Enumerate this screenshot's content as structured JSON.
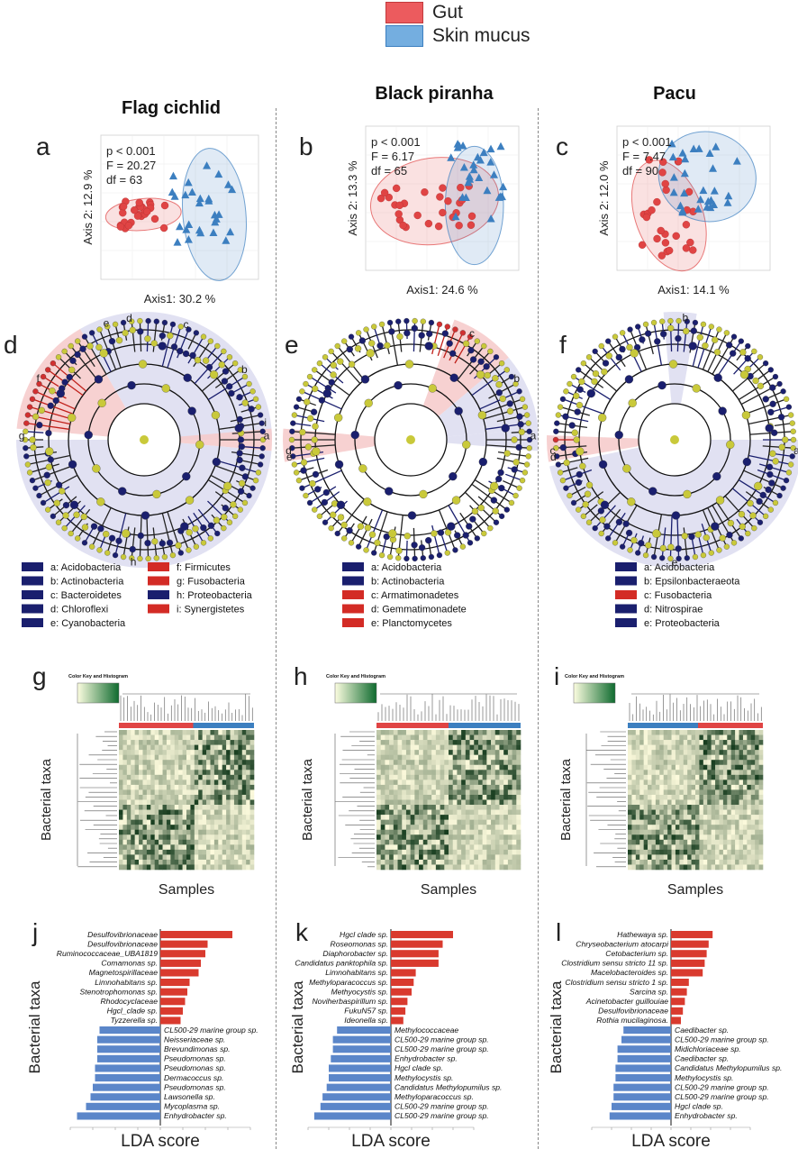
{
  "legend": {
    "items": [
      {
        "label": "Gut",
        "color": "#e8464a"
      },
      {
        "label": "Skin mucus",
        "color": "#6aa8dc"
      }
    ]
  },
  "colors": {
    "gut": "#e04444",
    "skin": "#3c7fc0",
    "blue_dark": "#1a1f6e",
    "red_bar": "#d93a2e",
    "blue_bar": "#5b86c9",
    "node_yellow": "#c9c93a"
  },
  "columns": [
    {
      "title": "Flag cichlid",
      "pcoa": {
        "letter": "a",
        "p": "p < 0.001",
        "F": "F =  20.27",
        "df": "df = 63",
        "xlabel": "Axis1:  30.2 %",
        "ylabel": "Axis 2:  12.9 %"
      },
      "clado": {
        "letter": "d",
        "labels": [
          "a",
          "b",
          "c",
          "d",
          "e",
          "f",
          "g",
          "h",
          "i"
        ],
        "legend": [
          {
            "label": "a: Acidobacteria",
            "color": "blue"
          },
          {
            "label": "b: Actinobacteria",
            "color": "blue"
          },
          {
            "label": "c: Bacteroidetes",
            "color": "blue"
          },
          {
            "label": "d: Chloroflexi",
            "color": "blue"
          },
          {
            "label": "e: Cyanobacteria",
            "color": "blue"
          },
          {
            "label": "f: Firmicutes",
            "color": "red"
          },
          {
            "label": "g: Fusobacteria",
            "color": "red"
          },
          {
            "label": "h: Proteobacteria",
            "color": "blue"
          },
          {
            "label": "i: Synergistetes",
            "color": "red"
          }
        ]
      },
      "heatmap": {
        "letter": "g",
        "ylabel": "Bacterial taxa",
        "xlabel": "Samples",
        "key": "Color Key and Histogram"
      },
      "lda": {
        "letter": "j",
        "ylabel": "Bacterial taxa",
        "xlabel": "LDA score",
        "items": [
          {
            "name": "Desulfovibrionaceae",
            "value": 3.2
          },
          {
            "name": "Desulfovibrionaceae",
            "value": 2.1
          },
          {
            "name": "Ruminococcaceae_UBA1819",
            "value": 2.0
          },
          {
            "name": "Comamonas sp.",
            "value": 1.8
          },
          {
            "name": "Magnetospirillaceae",
            "value": 1.7
          },
          {
            "name": "Limnohabitans sp.",
            "value": 1.3
          },
          {
            "name": "Stenotrophomonas sp.",
            "value": 1.2
          },
          {
            "name": "Rhodocyclaceae",
            "value": 1.1
          },
          {
            "name": "Hgcl_clade sp.",
            "value": 1.0
          },
          {
            "name": "Tyzzerella sp.",
            "value": 0.9
          },
          {
            "name": "CL500-29 marine group sp.",
            "value": -2.7
          },
          {
            "name": "Neisseriaceae sp.",
            "value": -2.8
          },
          {
            "name": "Brevundimonas sp.",
            "value": -2.8
          },
          {
            "name": "Pseudomonas sp.",
            "value": -2.8
          },
          {
            "name": "Pseudomonas sp.",
            "value": -2.9
          },
          {
            "name": "Dermacoccus sp.",
            "value": -2.9
          },
          {
            "name": "Pseudomonas sp.",
            "value": -3.0
          },
          {
            "name": "Lawsonella sp.",
            "value": -3.1
          },
          {
            "name": "Mycoplasma sp.",
            "value": -3.3
          },
          {
            "name": "Enhydrobacter sp.",
            "value": -3.7
          }
        ]
      }
    },
    {
      "title": "Black piranha",
      "pcoa": {
        "letter": "b",
        "p": "p < 0.001",
        "F": "F =  6.17",
        "df": "df = 65",
        "xlabel": "Axis1:  24.6 %",
        "ylabel": "Axis 2:  13.3 %"
      },
      "clado": {
        "letter": "e",
        "labels": [
          "a",
          "b",
          "c",
          "d",
          "e"
        ],
        "legend": [
          {
            "label": "a: Acidobacteria",
            "color": "blue"
          },
          {
            "label": "b: Actinobacteria",
            "color": "blue"
          },
          {
            "label": "c: Armatimonadetes",
            "color": "red"
          },
          {
            "label": "d: Gemmatimonadete",
            "color": "red"
          },
          {
            "label": "e: Planctomycetes",
            "color": "red"
          }
        ]
      },
      "heatmap": {
        "letter": "h",
        "ylabel": "Bacterial taxa",
        "xlabel": "Samples",
        "key": "Color Key and Histogram"
      },
      "lda": {
        "letter": "k",
        "ylabel": "Bacterial taxa",
        "xlabel": "LDA score",
        "items": [
          {
            "name": "Hgcl clade sp.",
            "value": 3.0
          },
          {
            "name": "Roseomonas sp.",
            "value": 2.5
          },
          {
            "name": "Diaphorobacter sp.",
            "value": 2.3
          },
          {
            "name": "Candidatus panktophila sp.",
            "value": 2.3
          },
          {
            "name": "Limnohabitans sp.",
            "value": 1.2
          },
          {
            "name": "Methyloparacoccus sp.",
            "value": 1.1
          },
          {
            "name": "Methyocystis sp.",
            "value": 1.0
          },
          {
            "name": "Noviherbaspirillum sp.",
            "value": 0.8
          },
          {
            "name": "FukuN57 sp.",
            "value": 0.7
          },
          {
            "name": "Ideonella sp.",
            "value": 0.6
          },
          {
            "name": "Methylococcaceae",
            "value": -2.6
          },
          {
            "name": "CL500-29 marine group sp.",
            "value": -2.8
          },
          {
            "name": "CL500-29 marine group sp.",
            "value": -2.8
          },
          {
            "name": "Enhydrobacter sp.",
            "value": -2.9
          },
          {
            "name": "Hgcl clade sp.",
            "value": -3.0
          },
          {
            "name": "Methylocystis sp.",
            "value": -3.0
          },
          {
            "name": "Candidatus Methylopumilus sp.",
            "value": -3.1
          },
          {
            "name": "Methyloparacoccus sp.",
            "value": -3.3
          },
          {
            "name": "CL500-29 marine group sp.",
            "value": -3.4
          },
          {
            "name": "CL500-29 marine group sp.",
            "value": -3.7
          }
        ]
      }
    },
    {
      "title": "Pacu",
      "pcoa": {
        "letter": "c",
        "p": "p < 0.001",
        "F": "F =  7.47",
        "df": "df = 90",
        "xlabel": "Axis1:  14.1 %",
        "ylabel": "Axis 2:  12.0 %"
      },
      "clado": {
        "letter": "f",
        "labels": [
          "a",
          "b",
          "c",
          "d",
          "e"
        ],
        "legend": [
          {
            "label": "a: Acidobacteria",
            "color": "blue"
          },
          {
            "label": "b: Epsilonbacteraeota",
            "color": "blue"
          },
          {
            "label": "c: Fusobacteria",
            "color": "red"
          },
          {
            "label": "d: Nitrospirae",
            "color": "blue"
          },
          {
            "label": "e: Proteobacteria",
            "color": "blue"
          }
        ]
      },
      "heatmap": {
        "letter": "i",
        "ylabel": "Bacterial taxa",
        "xlabel": "Samples",
        "key": "Color Key and Histogram"
      },
      "lda": {
        "letter": "l",
        "ylabel": "Bacterial taxa",
        "xlabel": "LDA score",
        "items": [
          {
            "name": "Hathewaya sp.",
            "value": 2.1
          },
          {
            "name": "Chryseobacterium atocarpi",
            "value": 1.9
          },
          {
            "name": "Cetobacterium sp.",
            "value": 1.8
          },
          {
            "name": "Clostridium sensu stricto 11 sp.",
            "value": 1.7
          },
          {
            "name": "Macelobacteroides sp.",
            "value": 1.6
          },
          {
            "name": "Clostridium sensu stricto 1 sp.",
            "value": 0.9
          },
          {
            "name": "Sarcina sp.",
            "value": 0.8
          },
          {
            "name": "Acinetobacter guillouiae",
            "value": 0.7
          },
          {
            "name": "Desulfovibrionaceae",
            "value": 0.6
          },
          {
            "name": "Rothia mucilaginosa.",
            "value": 0.5
          },
          {
            "name": "Caedibacter sp.",
            "value": -2.4
          },
          {
            "name": "CL500-29 marine group sp.",
            "value": -2.5
          },
          {
            "name": "Midichloriaceae sp.",
            "value": -2.7
          },
          {
            "name": "Caedibacter sp.",
            "value": -2.7
          },
          {
            "name": "Candidatus Methylopumilus sp.",
            "value": -2.8
          },
          {
            "name": "Methylocystis sp.",
            "value": -2.8
          },
          {
            "name": "CL500-29 marine group sp.",
            "value": -2.9
          },
          {
            "name": "CL500-29 marine group sp.",
            "value": -2.9
          },
          {
            "name": "Hgcl clade sp.",
            "value": -3.0
          },
          {
            "name": "Enhydrobacter sp.",
            "value": -3.1
          }
        ]
      }
    }
  ]
}
